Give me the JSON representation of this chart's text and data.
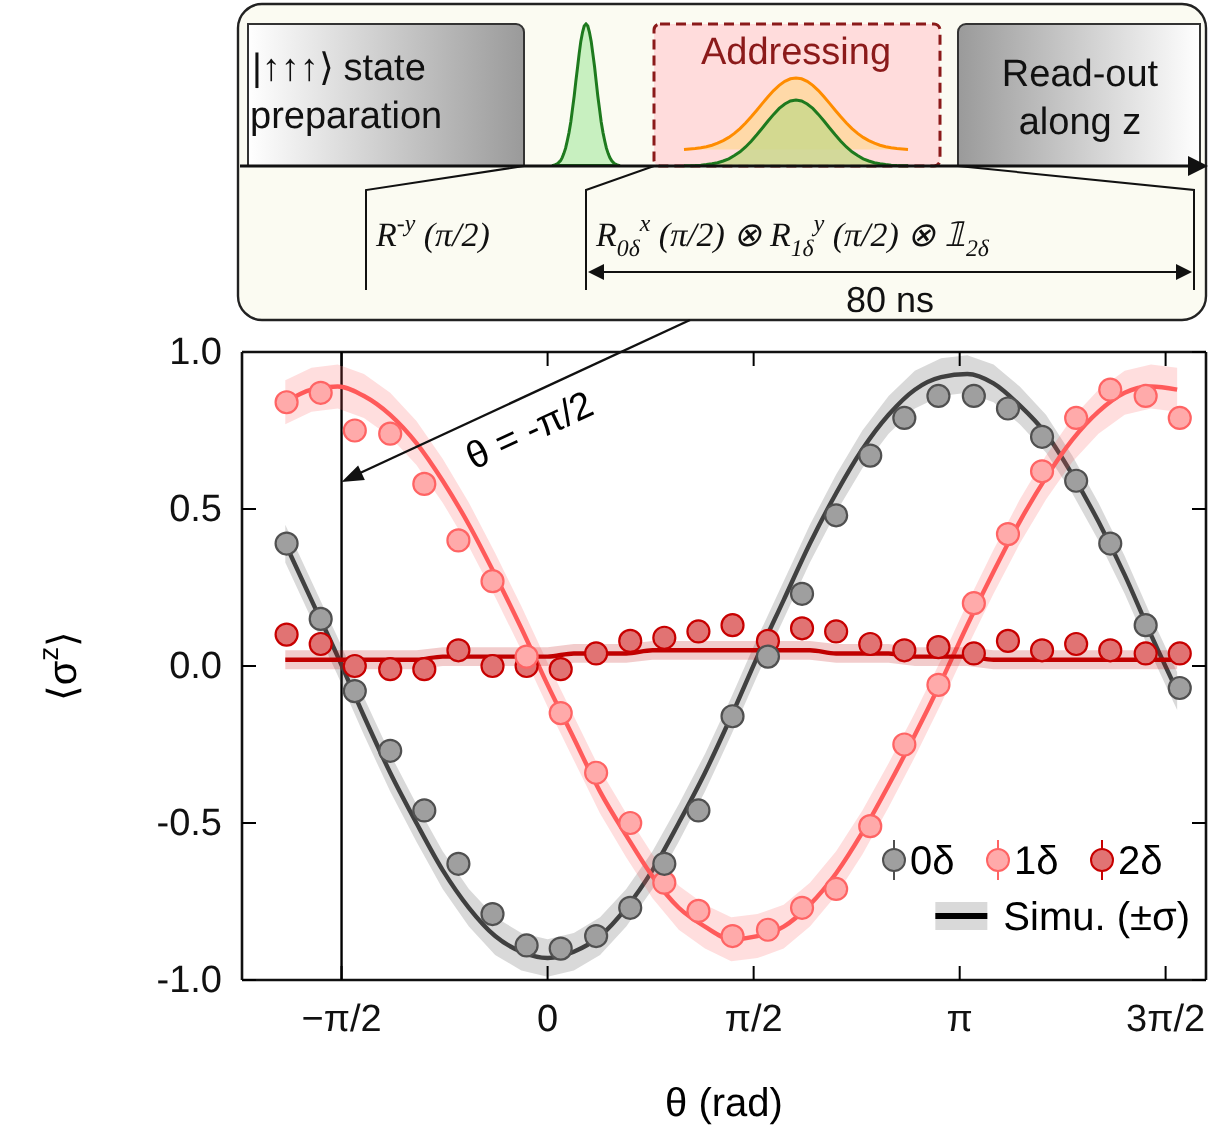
{
  "chart_data": {
    "type": "scatter",
    "xlabel": "θ (rad)",
    "ylabel": "⟨σ$^{z}$⟩",
    "xlim": [
      -2.33,
      5.02
    ],
    "ylim": [
      -1,
      1
    ],
    "xticks": [
      {
        "value": -1.571,
        "label": "−π/2"
      },
      0,
      {
        "value": 1.571,
        "label": "π/2"
      },
      {
        "value": 3.142,
        "label": "π"
      },
      {
        "value": 4.712,
        "label": "3π/2"
      }
    ],
    "yticks": [
      {
        "value": -1,
        "label": "-1.0"
      },
      {
        "value": -0.5,
        "label": "-0.5"
      },
      {
        "value": 0,
        "label": "0.0"
      },
      {
        "value": 0.5,
        "label": "0.5"
      },
      {
        "value": 1,
        "label": "1.0"
      }
    ],
    "grid": false,
    "legend": "bottom right",
    "ref_lines": [
      {
        "axis": "x",
        "value": -1.571,
        "color": "#000000"
      }
    ],
    "annotations": [
      "θ = -π/2",
      "|↑↑↑⟩ state",
      "preparation",
      "Addressing",
      "Read-out",
      "along z",
      "R$^{-y}$ (π/2)",
      "R$_{0δ}$$^{x}$ (π/2) ⊗ R$_{1δ}$$^{y}$ (π/2) ⊗ 𝟙$_{2δ}$",
      "80 ns"
    ],
    "series": [
      {
        "type": "line",
        "color": "#404040",
        "name": "Simu. (±σ)",
        "x": [
          -2.0,
          -1.8,
          -1.6,
          -1.4,
          -1.2,
          -1.0,
          -0.8,
          -0.6,
          -0.4,
          -0.2,
          0,
          0.2,
          0.4,
          0.6,
          0.8,
          1.0,
          1.2,
          1.4,
          1.6,
          1.8,
          2.0,
          2.2,
          2.4,
          2.6,
          2.8,
          3.0,
          3.2,
          3.4,
          3.6,
          3.8,
          4.0,
          4.2,
          4.4,
          4.6,
          4.8
        ],
        "values": [
          0.39,
          0.21,
          0.03,
          -0.16,
          -0.34,
          -0.5,
          -0.65,
          -0.77,
          -0.86,
          -0.91,
          -0.93,
          -0.91,
          -0.86,
          -0.77,
          -0.65,
          -0.5,
          -0.34,
          -0.16,
          0.03,
          0.21,
          0.39,
          0.55,
          0.69,
          0.8,
          0.88,
          0.92,
          0.93,
          0.9,
          0.83,
          0.74,
          0.61,
          0.46,
          0.29,
          0.1,
          -0.08
        ],
        "lower": [
          0.33,
          0.15,
          -0.03,
          -0.22,
          -0.4,
          -0.56,
          -0.71,
          -0.83,
          -0.92,
          -0.97,
          -0.99,
          -0.97,
          -0.92,
          -0.83,
          -0.71,
          -0.56,
          -0.4,
          -0.22,
          -0.03,
          0.15,
          0.33,
          0.49,
          0.63,
          0.74,
          0.82,
          0.86,
          0.87,
          0.84,
          0.77,
          0.68,
          0.55,
          0.4,
          0.23,
          0.04,
          -0.14
        ],
        "upper": [
          0.45,
          0.27,
          0.09,
          -0.1,
          -0.28,
          -0.44,
          -0.59,
          -0.71,
          -0.8,
          -0.85,
          -0.87,
          -0.85,
          -0.8,
          -0.71,
          -0.59,
          -0.44,
          -0.28,
          -0.1,
          0.09,
          0.27,
          0.45,
          0.61,
          0.75,
          0.86,
          0.94,
          0.98,
          0.99,
          0.96,
          0.89,
          0.8,
          0.67,
          0.52,
          0.35,
          0.16,
          -0.02
        ]
      },
      {
        "type": "line",
        "color": "#ff5a5a",
        "x": [
          -2.0,
          -1.8,
          -1.6,
          -1.4,
          -1.2,
          -1.0,
          -0.8,
          -0.6,
          -0.4,
          -0.2,
          0,
          0.2,
          0.4,
          0.6,
          0.8,
          1.0,
          1.2,
          1.4,
          1.6,
          1.8,
          2.0,
          2.2,
          2.4,
          2.6,
          2.8,
          3.0,
          3.2,
          3.4,
          3.6,
          3.8,
          4.0,
          4.2,
          4.4,
          4.6,
          4.8
        ],
        "values": [
          0.84,
          0.88,
          0.89,
          0.86,
          0.8,
          0.71,
          0.59,
          0.45,
          0.29,
          0.12,
          -0.06,
          -0.23,
          -0.4,
          -0.54,
          -0.67,
          -0.77,
          -0.83,
          -0.87,
          -0.86,
          -0.83,
          -0.76,
          -0.66,
          -0.53,
          -0.38,
          -0.22,
          -0.05,
          0.13,
          0.3,
          0.46,
          0.6,
          0.72,
          0.81,
          0.87,
          0.89,
          0.88
        ],
        "lower": [
          0.77,
          0.81,
          0.82,
          0.79,
          0.73,
          0.64,
          0.52,
          0.38,
          0.22,
          0.05,
          -0.13,
          -0.3,
          -0.47,
          -0.61,
          -0.74,
          -0.84,
          -0.9,
          -0.94,
          -0.93,
          -0.9,
          -0.83,
          -0.73,
          -0.6,
          -0.45,
          -0.29,
          -0.12,
          0.06,
          0.23,
          0.39,
          0.53,
          0.65,
          0.74,
          0.8,
          0.82,
          0.81
        ],
        "upper": [
          0.91,
          0.95,
          0.96,
          0.93,
          0.87,
          0.78,
          0.66,
          0.52,
          0.36,
          0.19,
          0.01,
          -0.16,
          -0.33,
          -0.47,
          -0.6,
          -0.7,
          -0.76,
          -0.8,
          -0.79,
          -0.76,
          -0.69,
          -0.59,
          -0.46,
          -0.31,
          -0.15,
          0.02,
          0.2,
          0.37,
          0.53,
          0.67,
          0.79,
          0.88,
          0.94,
          0.96,
          0.95
        ]
      },
      {
        "type": "line",
        "color": "#c00000",
        "x": [
          -2.0,
          -1.8,
          -1.6,
          -1.4,
          -1.2,
          -1.0,
          -0.8,
          -0.6,
          -0.4,
          -0.2,
          0,
          0.2,
          0.4,
          0.6,
          0.8,
          1.0,
          1.2,
          1.4,
          1.6,
          1.8,
          2.0,
          2.2,
          2.4,
          2.6,
          2.8,
          3.0,
          3.2,
          3.4,
          3.6,
          3.8,
          4.0,
          4.2,
          4.4,
          4.6,
          4.8
        ],
        "values": [
          0.02,
          0.02,
          0.02,
          0.02,
          0.02,
          0.02,
          0.03,
          0.03,
          0.03,
          0.03,
          0.03,
          0.04,
          0.04,
          0.04,
          0.05,
          0.05,
          0.05,
          0.05,
          0.05,
          0.05,
          0.05,
          0.04,
          0.04,
          0.04,
          0.03,
          0.03,
          0.03,
          0.02,
          0.02,
          0.02,
          0.02,
          0.02,
          0.02,
          0.02,
          0.02
        ],
        "lower": [
          -0.01,
          -0.01,
          -0.01,
          -0.01,
          -0.01,
          -0.01,
          0.0,
          0.0,
          0.0,
          0.0,
          0.0,
          0.01,
          0.01,
          0.01,
          0.02,
          0.02,
          0.02,
          0.02,
          0.02,
          0.02,
          0.02,
          0.01,
          0.01,
          0.01,
          0.0,
          0.0,
          0.0,
          -0.01,
          -0.01,
          -0.01,
          -0.01,
          -0.01,
          -0.01,
          -0.01,
          -0.01
        ],
        "upper": [
          0.05,
          0.05,
          0.05,
          0.05,
          0.05,
          0.05,
          0.06,
          0.06,
          0.06,
          0.06,
          0.06,
          0.07,
          0.07,
          0.07,
          0.08,
          0.08,
          0.08,
          0.08,
          0.08,
          0.08,
          0.08,
          0.07,
          0.07,
          0.07,
          0.06,
          0.06,
          0.06,
          0.05,
          0.05,
          0.05,
          0.05,
          0.05,
          0.05,
          0.05,
          0.05
        ]
      },
      {
        "marker": "circle",
        "name": "0δ",
        "color": "#505050",
        "x": [
          -1.99,
          -1.73,
          -1.47,
          -1.2,
          -0.94,
          -0.68,
          -0.42,
          -0.16,
          0.1,
          0.37,
          0.63,
          0.89,
          1.15,
          1.41,
          1.68,
          1.94,
          2.2,
          2.46,
          2.72,
          2.98,
          3.25,
          3.51,
          3.77,
          4.03,
          4.29,
          4.56,
          4.82
        ],
        "values": [
          0.39,
          0.15,
          -0.08,
          -0.27,
          -0.46,
          -0.63,
          -0.79,
          -0.89,
          -0.9,
          -0.86,
          -0.77,
          -0.63,
          -0.46,
          -0.16,
          0.03,
          0.23,
          0.48,
          0.67,
          0.79,
          0.86,
          0.86,
          0.82,
          0.73,
          0.59,
          0.39,
          0.13,
          -0.07
        ]
      },
      {
        "marker": "circle",
        "name": "1δ",
        "color": "#ff6464",
        "x": [
          -1.99,
          -1.73,
          -1.47,
          -1.2,
          -0.94,
          -0.68,
          -0.42,
          -0.16,
          0.1,
          0.37,
          0.63,
          0.89,
          1.15,
          1.41,
          1.68,
          1.94,
          2.2,
          2.46,
          2.72,
          2.98,
          3.25,
          3.51,
          3.77,
          4.03,
          4.29,
          4.56,
          4.82
        ],
        "values": [
          0.84,
          0.87,
          0.75,
          0.74,
          0.58,
          0.4,
          0.27,
          0.03,
          -0.15,
          -0.34,
          -0.5,
          -0.69,
          -0.78,
          -0.86,
          -0.84,
          -0.77,
          -0.71,
          -0.51,
          -0.25,
          -0.06,
          0.2,
          0.42,
          0.62,
          0.79,
          0.88,
          0.86,
          0.79
        ]
      },
      {
        "marker": "circle",
        "name": "2δ",
        "color": "#c80000",
        "x": [
          -1.99,
          -1.73,
          -1.47,
          -1.2,
          -0.94,
          -0.68,
          -0.42,
          -0.16,
          0.1,
          0.37,
          0.63,
          0.89,
          1.15,
          1.41,
          1.68,
          1.94,
          2.2,
          2.46,
          2.72,
          2.98,
          3.25,
          3.51,
          3.77,
          4.03,
          4.29,
          4.56,
          4.82
        ],
        "values": [
          0.1,
          0.07,
          0.0,
          -0.01,
          -0.01,
          0.05,
          0.0,
          0.0,
          -0.01,
          0.04,
          0.08,
          0.09,
          0.11,
          0.13,
          0.08,
          0.12,
          0.11,
          0.07,
          0.05,
          0.06,
          0.04,
          0.08,
          0.05,
          0.07,
          0.05,
          0.04,
          0.04
        ]
      }
    ]
  }
}
